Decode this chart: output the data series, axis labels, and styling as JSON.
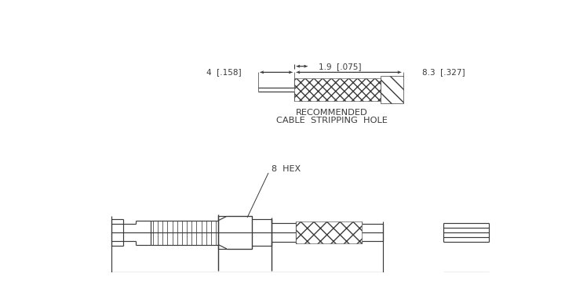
{
  "bg_color": "#ffffff",
  "line_color": "#3a3a3a",
  "text_color": "#3a3a3a",
  "label_recommended_1": "RECOMMENDED",
  "label_recommended_2": "CABLE  STRIPPING  HOLE",
  "label_hex": "8  HEX",
  "dim1_label": "4  [.158]",
  "dim2_label": "1.9  [.075]",
  "dim3_label": "8.3  [.327]"
}
